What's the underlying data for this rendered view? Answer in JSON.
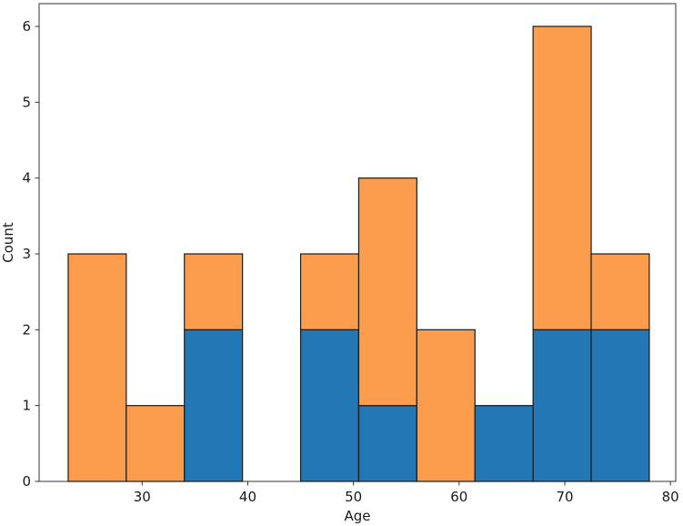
{
  "figure": {
    "background_color": "#ffffff",
    "spine_color": "#333333",
    "tick_color": "#333333",
    "text_color": "#1a1a1a"
  },
  "chart_data": {
    "type": "bar",
    "subtype": "stacked-histogram",
    "xlabel": "Age",
    "ylabel": "Count",
    "bin_edges": [
      23,
      28.5,
      34,
      39.5,
      45,
      50.5,
      56,
      61.5,
      67,
      72.5,
      78
    ],
    "series": [
      {
        "name": "blue-series",
        "color": "#2277b4",
        "values": [
          0,
          0,
          2,
          0,
          2,
          1,
          0,
          1,
          2,
          2
        ]
      },
      {
        "name": "orange-series",
        "color": "#fb9d4c",
        "values": [
          3,
          1,
          1,
          0,
          1,
          3,
          2,
          0,
          4,
          1
        ]
      }
    ],
    "bar_totals": [
      3,
      1,
      3,
      0,
      3,
      4,
      2,
      1,
      6,
      3
    ],
    "bar_edge_color": "#1b1b1b",
    "xticks": [
      30,
      40,
      50,
      60,
      70,
      80
    ],
    "yticks": [
      0,
      1,
      2,
      3,
      4,
      5,
      6
    ],
    "xlim": [
      20.25,
      80.5
    ],
    "ylim": [
      0,
      6.3
    ],
    "grid": false,
    "legend": null,
    "legend_position": "none",
    "title": ""
  }
}
